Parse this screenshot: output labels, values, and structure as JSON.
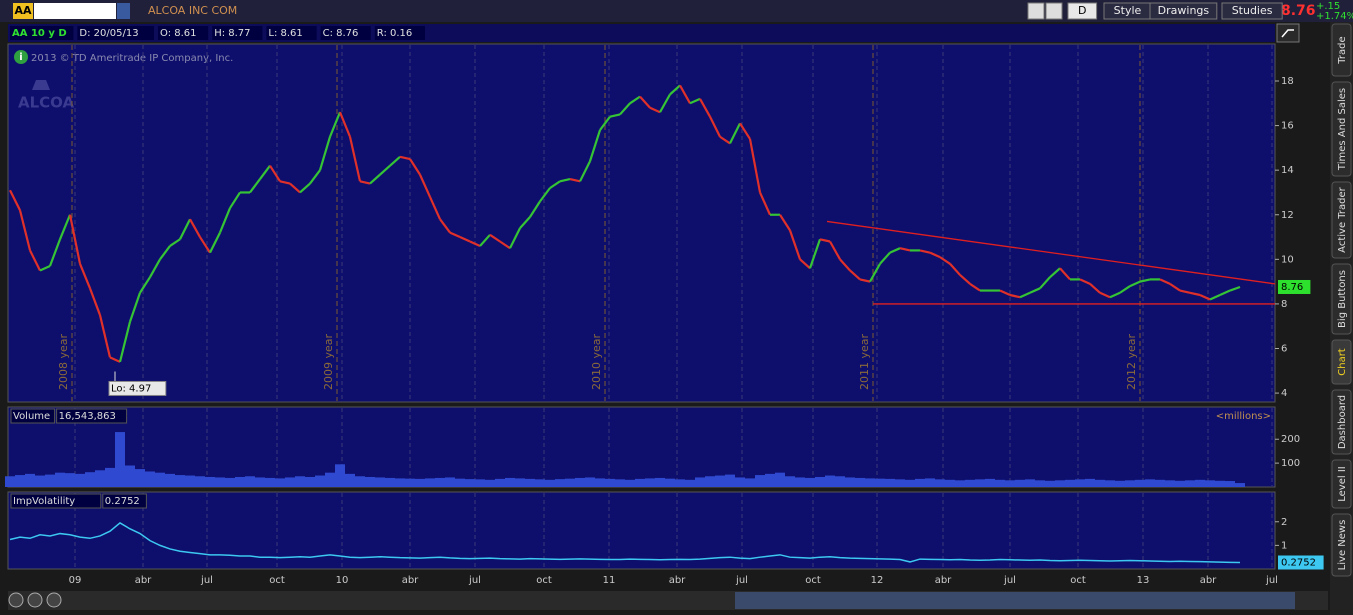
{
  "header": {
    "symbol": "AA",
    "company": "ALCOA INC COM",
    "buttons": [
      "D",
      "Style",
      "Drawings",
      "Studies"
    ],
    "last": "8.76",
    "change": "+.15",
    "change_pct": "+1.74%"
  },
  "info": [
    "AA 10 y D",
    "D: 20/05/13",
    "O: 8.61",
    "H: 8.77",
    "L: 8.61",
    "C: 8.76",
    "R: 0.16"
  ],
  "copyright": "2013 © TD Ameritrade IP Company, Inc.",
  "logo": "ALCOA",
  "side_tabs": [
    "Trade",
    "Times And Sales",
    "Active Trader",
    "Big Buttons",
    "Chart",
    "Dashboard",
    "Level II",
    "Live News"
  ],
  "chart_data": [
    {
      "type": "line",
      "values": [
        13.1,
        12.2,
        10.4,
        9.5,
        9.7,
        10.9,
        12.0,
        9.8,
        8.7,
        7.5,
        5.6,
        5.4,
        7.2,
        8.5,
        9.2,
        10.0,
        10.6,
        10.9,
        11.8,
        11.0,
        10.3,
        11.2,
        12.3,
        13.0,
        13.0,
        13.6,
        14.2,
        13.5,
        13.4,
        13.0,
        13.4,
        14.0,
        15.5,
        16.6,
        15.5,
        13.5,
        13.4,
        13.8,
        14.2,
        14.6,
        14.5,
        13.8,
        12.8,
        11.8,
        11.2,
        11.0,
        10.8,
        10.6,
        11.1,
        10.8,
        10.5,
        11.4,
        11.9,
        12.6,
        13.2,
        13.5,
        13.6,
        13.5,
        14.4,
        15.8,
        16.4,
        16.5,
        17.0,
        17.3,
        16.8,
        16.6,
        17.4,
        17.8,
        17.0,
        17.2,
        16.4,
        15.5,
        15.2,
        16.1,
        15.4,
        13.0,
        12.0,
        12.0,
        11.3,
        10.0,
        9.6,
        10.9,
        10.8,
        10.0,
        9.5,
        9.1,
        9.0,
        9.8,
        10.3,
        10.5,
        10.4,
        10.4,
        10.3,
        10.1,
        9.8,
        9.3,
        8.9,
        8.6,
        8.6,
        8.6,
        8.4,
        8.3,
        8.5,
        8.7,
        9.2,
        9.6,
        9.1,
        9.1,
        8.9,
        8.5,
        8.3,
        8.5,
        8.8,
        9.0,
        9.1,
        9.1,
        8.9,
        8.6,
        8.5,
        8.4,
        8.2,
        8.4,
        8.6,
        8.76
      ],
      "up_color": "#35c435",
      "down_color": "#e0302a",
      "xlim": [
        -0.2,
        126.5
      ],
      "ylim": [
        3.6,
        19.66
      ],
      "yticks": [
        4,
        6,
        8,
        10,
        12,
        14,
        16,
        18
      ],
      "period_markers": [
        {
          "value": 6.2,
          "label": "2008 year"
        },
        {
          "value": 32.7,
          "label": "2009 year"
        },
        {
          "value": 59.5,
          "label": "2010 year"
        },
        {
          "value": 86.3,
          "label": "2011 year"
        },
        {
          "value": 113,
          "label": "2012 year"
        }
      ],
      "trendlines": [
        {
          "x": [
            81.7,
            126.5
          ],
          "y": [
            11.7,
            8.9
          ],
          "color": "#e02020"
        },
        {
          "x": [
            86.3,
            126.5
          ],
          "y": [
            8.0,
            8.0
          ],
          "color": "#e02020"
        }
      ],
      "annotations": [
        {
          "label": "Lo: 4.97",
          "x": 10.5,
          "value": 4.97
        }
      ],
      "last_value_label": "8.76",
      "last_value_color": "#2ee02e"
    },
    {
      "type": "bar",
      "title": "Volume",
      "value_label": "16,543,863",
      "unit_label": "<millions>",
      "values": [
        45,
        50,
        55,
        48,
        52,
        60,
        58,
        55,
        62,
        70,
        80,
        230,
        90,
        75,
        65,
        60,
        55,
        50,
        48,
        45,
        42,
        40,
        38,
        42,
        45,
        40,
        38,
        36,
        40,
        45,
        42,
        48,
        60,
        95,
        55,
        45,
        42,
        40,
        38,
        36,
        35,
        34,
        36,
        38,
        40,
        35,
        33,
        32,
        30,
        34,
        38,
        36,
        34,
        32,
        30,
        33,
        35,
        38,
        40,
        36,
        34,
        32,
        30,
        34,
        36,
        38,
        35,
        32,
        30,
        40,
        45,
        48,
        52,
        40,
        36,
        50,
        55,
        60,
        45,
        40,
        38,
        42,
        48,
        45,
        40,
        38,
        36,
        35,
        34,
        32,
        30,
        34,
        36,
        32,
        30,
        28,
        30,
        32,
        34,
        30,
        28,
        30,
        32,
        28,
        26,
        28,
        30,
        32,
        34,
        30,
        28,
        26,
        28,
        30,
        32,
        30,
        28,
        26,
        28,
        30,
        28,
        26,
        25,
        16.543863
      ],
      "color": "#2f4ad0",
      "xlim": [
        -0.2,
        126.5
      ],
      "ylim": [
        0,
        335
      ],
      "yticks": [
        100,
        200
      ]
    },
    {
      "type": "line",
      "title": "ImpVolatility",
      "value_label": "0.2752",
      "values": [
        1.25,
        1.35,
        1.3,
        1.45,
        1.4,
        1.5,
        1.45,
        1.35,
        1.3,
        1.4,
        1.6,
        1.95,
        1.7,
        1.5,
        1.2,
        1.0,
        0.85,
        0.75,
        0.7,
        0.65,
        0.6,
        0.6,
        0.58,
        0.55,
        0.55,
        0.5,
        0.5,
        0.48,
        0.5,
        0.52,
        0.5,
        0.55,
        0.6,
        0.55,
        0.5,
        0.48,
        0.5,
        0.52,
        0.5,
        0.48,
        0.47,
        0.46,
        0.48,
        0.5,
        0.47,
        0.45,
        0.44,
        0.45,
        0.46,
        0.44,
        0.43,
        0.42,
        0.44,
        0.43,
        0.42,
        0.41,
        0.42,
        0.43,
        0.42,
        0.41,
        0.4,
        0.4,
        0.42,
        0.41,
        0.4,
        0.39,
        0.4,
        0.41,
        0.4,
        0.42,
        0.45,
        0.48,
        0.5,
        0.46,
        0.44,
        0.5,
        0.55,
        0.6,
        0.5,
        0.48,
        0.46,
        0.5,
        0.52,
        0.48,
        0.46,
        0.45,
        0.44,
        0.43,
        0.42,
        0.4,
        0.3,
        0.42,
        0.41,
        0.4,
        0.39,
        0.4,
        0.38,
        0.37,
        0.38,
        0.4,
        0.39,
        0.38,
        0.37,
        0.38,
        0.36,
        0.35,
        0.36,
        0.37,
        0.36,
        0.35,
        0.34,
        0.35,
        0.36,
        0.35,
        0.34,
        0.33,
        0.32,
        0.33,
        0.32,
        0.31,
        0.3,
        0.29,
        0.28,
        0.2752
      ],
      "color": "#3cc8f0",
      "xlim": [
        -0.2,
        126.5
      ],
      "ylim": [
        0,
        3.26
      ],
      "yticks": [
        1,
        2
      ],
      "xticks": [
        {
          "value": 6.5,
          "label": "09"
        },
        {
          "value": 13.3,
          "label": "abr"
        },
        {
          "value": 19.7,
          "label": "jul"
        },
        {
          "value": 26.7,
          "label": "oct"
        },
        {
          "value": 33.2,
          "label": "10"
        },
        {
          "value": 40,
          "label": "abr"
        },
        {
          "value": 46.5,
          "label": "jul"
        },
        {
          "value": 53.4,
          "label": "oct"
        },
        {
          "value": 59.9,
          "label": "11"
        },
        {
          "value": 66.7,
          "label": "abr"
        },
        {
          "value": 73.2,
          "label": "jul"
        },
        {
          "value": 80.3,
          "label": "oct"
        },
        {
          "value": 86.7,
          "label": "12"
        },
        {
          "value": 93.3,
          "label": "abr"
        },
        {
          "value": 100,
          "label": "jul"
        },
        {
          "value": 106.8,
          "label": "oct"
        },
        {
          "value": 113.3,
          "label": "13"
        },
        {
          "value": 119.8,
          "label": "abr"
        },
        {
          "value": 126.2,
          "label": "jul"
        }
      ],
      "last_value_label": "0.2752",
      "last_value_color": "#3cc8f0"
    }
  ]
}
